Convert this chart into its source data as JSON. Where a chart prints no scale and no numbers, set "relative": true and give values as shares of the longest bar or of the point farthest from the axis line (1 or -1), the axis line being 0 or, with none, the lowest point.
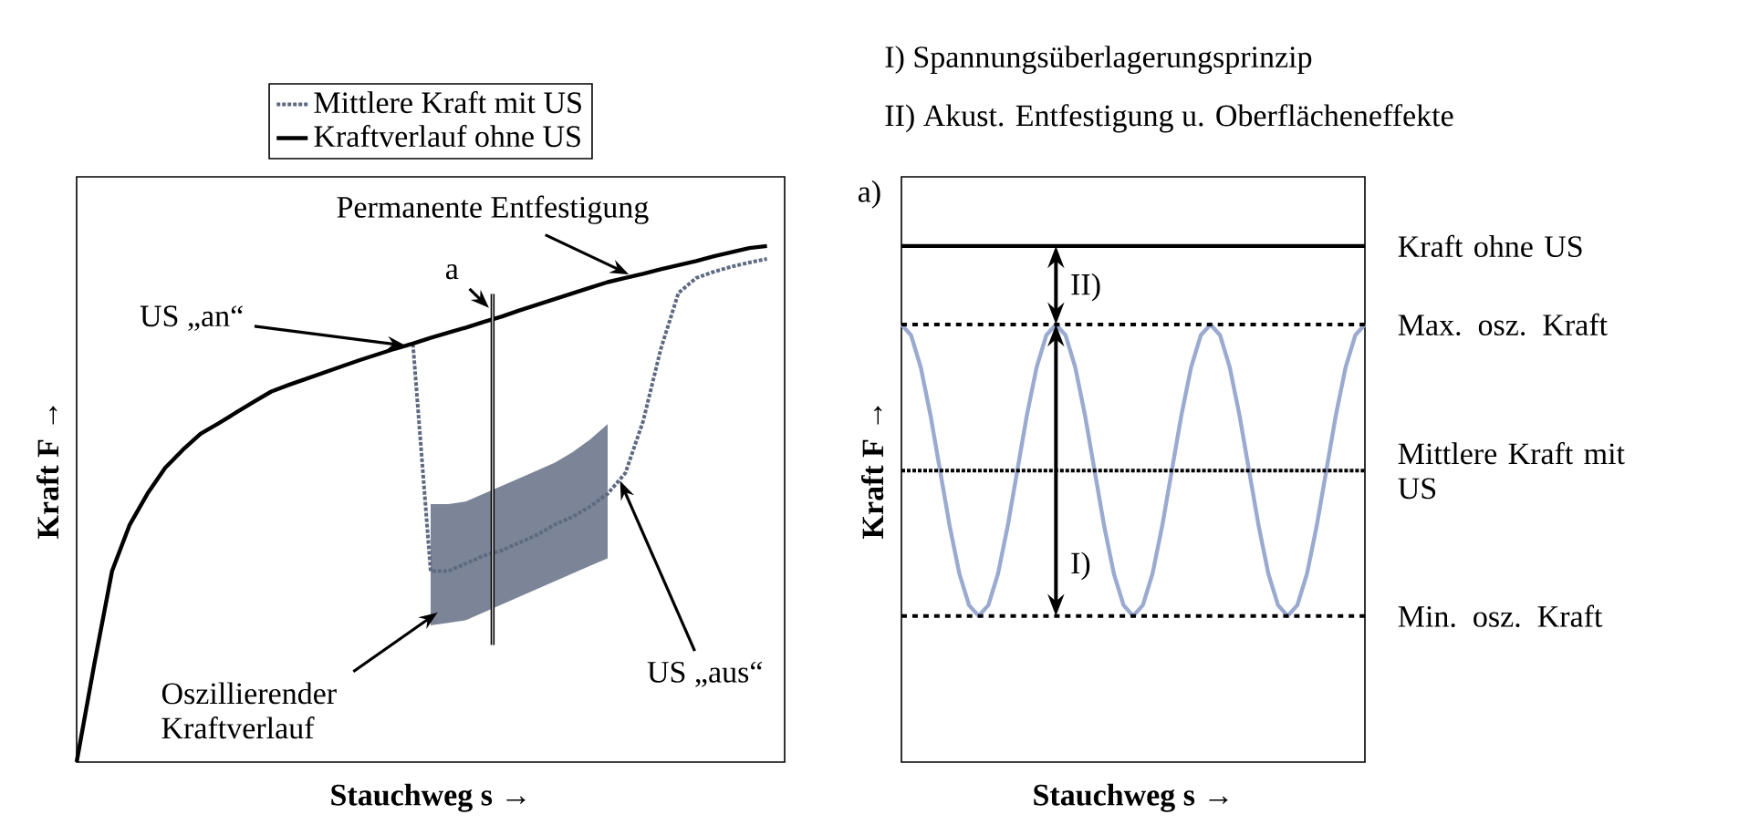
{
  "chart_data": [
    {
      "type": "line",
      "relative": true,
      "legend": "top",
      "xlabel": "Stauchweg s →",
      "ylabel": "Kraft F →",
      "categories": [
        null,
        null,
        null,
        null,
        null,
        null,
        null,
        null,
        null,
        null,
        null,
        null,
        null,
        null,
        null,
        null,
        null,
        null,
        null,
        null,
        null,
        null,
        null,
        null,
        null,
        null,
        null,
        null,
        null,
        null,
        null,
        null,
        null,
        null,
        null,
        null,
        null,
        null,
        null,
        null,
        null
      ],
      "series": [
        {
          "name": "Mittlere Kraft mit US",
          "color": "#5e6a80",
          "line_style": "dotted",
          "values": [
            null,
            null,
            null,
            null,
            null,
            null,
            null,
            null,
            null,
            null,
            null,
            null,
            null,
            null,
            null,
            null,
            null,
            null,
            null,
            0.81,
            0.37,
            0.37,
            0.385,
            0.4,
            0.41,
            0.425,
            0.44,
            0.46,
            0.475,
            0.495,
            0.52,
            0.56,
            0.66,
            0.8,
            0.909,
            0.938,
            0.95,
            0.96,
            0.968,
            0.975,
            null
          ],
          "lower": [
            null,
            null,
            null,
            null,
            null,
            null,
            null,
            null,
            null,
            null,
            null,
            null,
            null,
            null,
            null,
            null,
            null,
            null,
            null,
            null,
            0.265,
            0.27,
            0.275,
            0.29,
            0.305,
            0.32,
            0.335,
            0.35,
            0.365,
            0.38,
            0.395,
            null,
            null,
            null,
            null,
            null,
            null,
            null,
            null,
            null,
            null
          ],
          "upper": [
            null,
            null,
            null,
            null,
            null,
            null,
            null,
            null,
            null,
            null,
            null,
            null,
            null,
            null,
            null,
            null,
            null,
            null,
            null,
            null,
            0.5,
            0.5,
            0.505,
            0.52,
            0.535,
            0.55,
            0.565,
            0.58,
            0.6,
            0.625,
            0.655,
            null,
            null,
            null,
            null,
            null,
            null,
            null,
            null,
            null,
            null
          ]
        },
        {
          "name": "Kraftverlauf ohne US",
          "color": "#000000",
          "line_style": "solid",
          "values": [
            0,
            0.19,
            0.37,
            0.46,
            0.52,
            0.57,
            0.605,
            0.636,
            0.656,
            0.677,
            0.698,
            0.718,
            0.731,
            0.743,
            0.755,
            0.767,
            0.779,
            0.79,
            0.801,
            0.811,
            0.822,
            0.832,
            0.842,
            0.853,
            0.863,
            0.875,
            0.886,
            0.897,
            0.908,
            0.919,
            0.93,
            0.938,
            0.946,
            0.955,
            0.963,
            0.971,
            0.98,
            0.988,
            0.996,
            1,
            null
          ]
        }
      ],
      "annotations": [
        "a",
        "US „an“",
        "US „aus“",
        "Oszillierender Kraftverlauf",
        "Permanente Entfestigung"
      ]
    },
    {
      "type": "line",
      "relative": true,
      "xlabel": "Stauchweg s →",
      "ylabel": "Kraft F →",
      "categories": [
        null,
        null,
        null,
        null,
        null,
        null,
        null,
        null,
        null,
        null,
        null,
        null,
        null,
        null,
        null,
        null,
        null,
        null,
        null,
        null,
        null,
        null,
        null,
        null,
        null,
        null,
        null,
        null,
        null,
        null,
        null,
        null,
        null,
        null,
        null,
        null,
        null,
        null,
        null,
        null,
        null,
        null,
        null,
        null,
        null,
        null,
        null,
        null,
        null
      ],
      "series": [
        {
          "color": "#9aaad0",
          "values": [
            0.848,
            0.827,
            0.765,
            0.673,
            0.565,
            0.457,
            0.365,
            0.304,
            0.283,
            0.304,
            0.365,
            0.457,
            0.565,
            0.673,
            0.765,
            0.827,
            0.848,
            0.827,
            0.765,
            0.673,
            0.565,
            0.457,
            0.365,
            0.304,
            0.283,
            0.304,
            0.365,
            0.457,
            0.565,
            0.673,
            0.765,
            0.827,
            0.848,
            0.827,
            0.765,
            0.673,
            0.565,
            0.457,
            0.365,
            0.304,
            0.283,
            0.304,
            0.365,
            0.457,
            0.565,
            0.673,
            0.765,
            0.827,
            0.848
          ]
        },
        {
          "name": "Kraft ohne US",
          "color": "#000000",
          "line_style": "solid",
          "values": [
            1,
            1,
            1,
            1,
            1,
            1,
            1,
            1,
            1,
            1,
            1,
            1,
            1,
            1,
            1,
            1,
            1,
            1,
            1,
            1,
            1,
            1,
            1,
            1,
            1,
            1,
            1,
            1,
            1,
            1,
            1,
            1,
            1,
            1,
            1,
            1,
            1,
            1,
            1,
            1,
            1,
            1,
            1,
            1,
            1,
            1,
            1,
            1,
            1
          ]
        },
        {
          "name": "Max. osz. Kraft",
          "color": "#000000",
          "line_style": "dashed",
          "values": [
            0.848,
            0.848,
            0.848,
            0.848,
            0.848,
            0.848,
            0.848,
            0.848,
            0.848,
            0.848,
            0.848,
            0.848,
            0.848,
            0.848,
            0.848,
            0.848,
            0.848,
            0.848,
            0.848,
            0.848,
            0.848,
            0.848,
            0.848,
            0.848,
            0.848,
            0.848,
            0.848,
            0.848,
            0.848,
            0.848,
            0.848,
            0.848,
            0.848,
            0.848,
            0.848,
            0.848,
            0.848,
            0.848,
            0.848,
            0.848,
            0.848,
            0.848,
            0.848,
            0.848,
            0.848,
            0.848,
            0.848,
            0.848,
            0.848
          ]
        },
        {
          "name": "Mittlere Kraft mit US",
          "color": "#000000",
          "line_style": "dotted",
          "values": [
            0.565,
            0.565,
            0.565,
            0.565,
            0.565,
            0.565,
            0.565,
            0.565,
            0.565,
            0.565,
            0.565,
            0.565,
            0.565,
            0.565,
            0.565,
            0.565,
            0.565,
            0.565,
            0.565,
            0.565,
            0.565,
            0.565,
            0.565,
            0.565,
            0.565,
            0.565,
            0.565,
            0.565,
            0.565,
            0.565,
            0.565,
            0.565,
            0.565,
            0.565,
            0.565,
            0.565,
            0.565,
            0.565,
            0.565,
            0.565,
            0.565,
            0.565,
            0.565,
            0.565,
            0.565,
            0.565,
            0.565,
            0.565,
            0.565
          ]
        },
        {
          "name": "Min. osz. Kraft",
          "color": "#000000",
          "line_style": "dashed",
          "values": [
            0.283,
            0.283,
            0.283,
            0.283,
            0.283,
            0.283,
            0.283,
            0.283,
            0.283,
            0.283,
            0.283,
            0.283,
            0.283,
            0.283,
            0.283,
            0.283,
            0.283,
            0.283,
            0.283,
            0.283,
            0.283,
            0.283,
            0.283,
            0.283,
            0.283,
            0.283,
            0.283,
            0.283,
            0.283,
            0.283,
            0.283,
            0.283,
            0.283,
            0.283,
            0.283,
            0.283,
            0.283,
            0.283,
            0.283,
            0.283,
            0.283,
            0.283,
            0.283,
            0.283,
            0.283,
            0.283,
            0.283,
            0.283,
            0.283
          ]
        }
      ],
      "annotations": [
        "a)",
        "I)  Spannungsüberlagerungsprinzip",
        "II) Akust. Entfestigung u. Oberflächeneffekte",
        "II)",
        "I)"
      ]
    }
  ]
}
